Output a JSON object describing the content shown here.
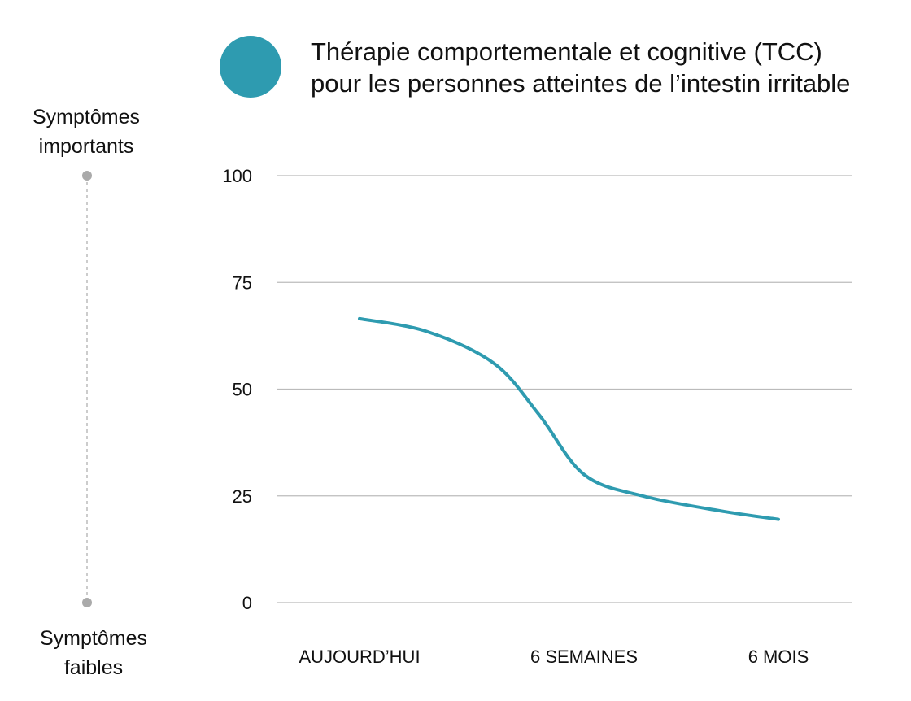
{
  "chart_data": {
    "type": "line",
    "title_lines": [
      "Thérapie comportementale et cognitive (TCC)",
      "pour les personnes atteintes de l’intestin irritable"
    ],
    "categories": [
      "AUJOURD’HUI",
      "6 SEMAINES",
      "6 MOIS"
    ],
    "ylim": [
      0,
      100
    ],
    "yticks": [
      0,
      25,
      50,
      75,
      100
    ],
    "grid": true,
    "legend_position": "top",
    "series": [
      {
        "name": "Thérapie comportementale et cognitive (TCC) pour les personnes atteintes de l’intestin irritable",
        "color": "#2E9BB0",
        "points": [
          {
            "x": 0.0,
            "y": 66.5
          },
          {
            "x": 0.3,
            "y": 63.5
          },
          {
            "x": 0.6,
            "y": 56
          },
          {
            "x": 0.8,
            "y": 44
          },
          {
            "x": 1.0,
            "y": 30
          },
          {
            "x": 1.3,
            "y": 25
          },
          {
            "x": 1.7,
            "y": 21.5
          },
          {
            "x": 2.0,
            "y": 19.5
          }
        ]
      }
    ],
    "side_axis": {
      "top_label_lines": [
        "Symptômes",
        "importants"
      ],
      "bottom_label_lines": [
        "Symptômes",
        "faibles"
      ],
      "dot_color": "#AAAAAA"
    },
    "gridline_color": "#BBBBBB"
  }
}
